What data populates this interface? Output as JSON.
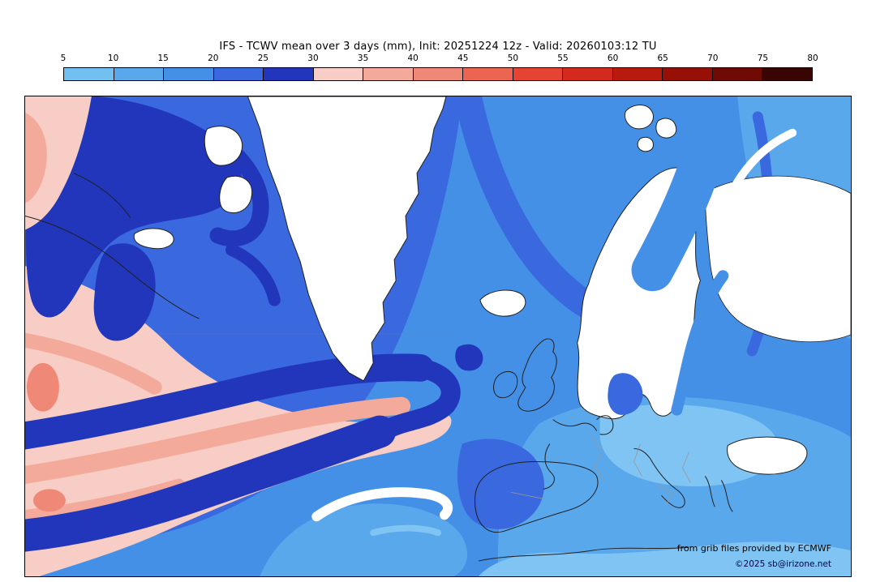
{
  "header": {
    "title": "IFS - TCWV mean over 3 days (mm), Init: 20251224 12z - Valid: 20260103:12 TU"
  },
  "colorbar": {
    "ticks": [
      "5",
      "10",
      "15",
      "20",
      "25",
      "30",
      "35",
      "40",
      "45",
      "50",
      "55",
      "60",
      "65",
      "70",
      "75",
      "80"
    ],
    "colors": [
      "#72c0ef",
      "#5aa8ec",
      "#4590e7",
      "#3a68de",
      "#2236bc",
      "#f7cdc5",
      "#f4aa9b",
      "#f08877",
      "#ec6552",
      "#e64433",
      "#d42a1e",
      "#b81a10",
      "#971008",
      "#6f0a04",
      "#380502"
    ],
    "unit": "mm"
  },
  "map": {
    "attribution_line1": "from grib files provided by ECMWF",
    "attribution_line2": "©2025 sb@irizone.net",
    "colors": {
      "ocean_mid": "#4590e7",
      "ocean_royal": "#3a68de",
      "ocean_navy": "#2236bc",
      "ocean_light": "#5aa8ec",
      "ocean_lighter": "#7fc4f2",
      "pink_pale": "#f7cdc5",
      "salmon": "#f4aa9b",
      "salmon_deep": "#f08877",
      "land_white": "#ffffff",
      "coastline": "#1f1f1f",
      "border_gray": "#999999"
    }
  },
  "chart_data": {
    "type": "filled_contour_map",
    "title": "IFS - TCWV mean over 3 days (mm), Init: 20251224 12z - Valid: 20260103:12 TU",
    "levels": [
      5,
      10,
      15,
      20,
      25,
      30,
      35,
      40,
      45,
      50,
      55,
      60,
      65,
      70,
      75,
      80
    ],
    "level_colors": [
      "#72c0ef",
      "#5aa8ec",
      "#4590e7",
      "#3a68de",
      "#2236bc",
      "#f7cdc5",
      "#f4aa9b",
      "#f08877",
      "#ec6552",
      "#e64433",
      "#d42a1e",
      "#b81a10",
      "#971008",
      "#6f0a04",
      "#380502"
    ],
    "legend_position": "top"
  }
}
